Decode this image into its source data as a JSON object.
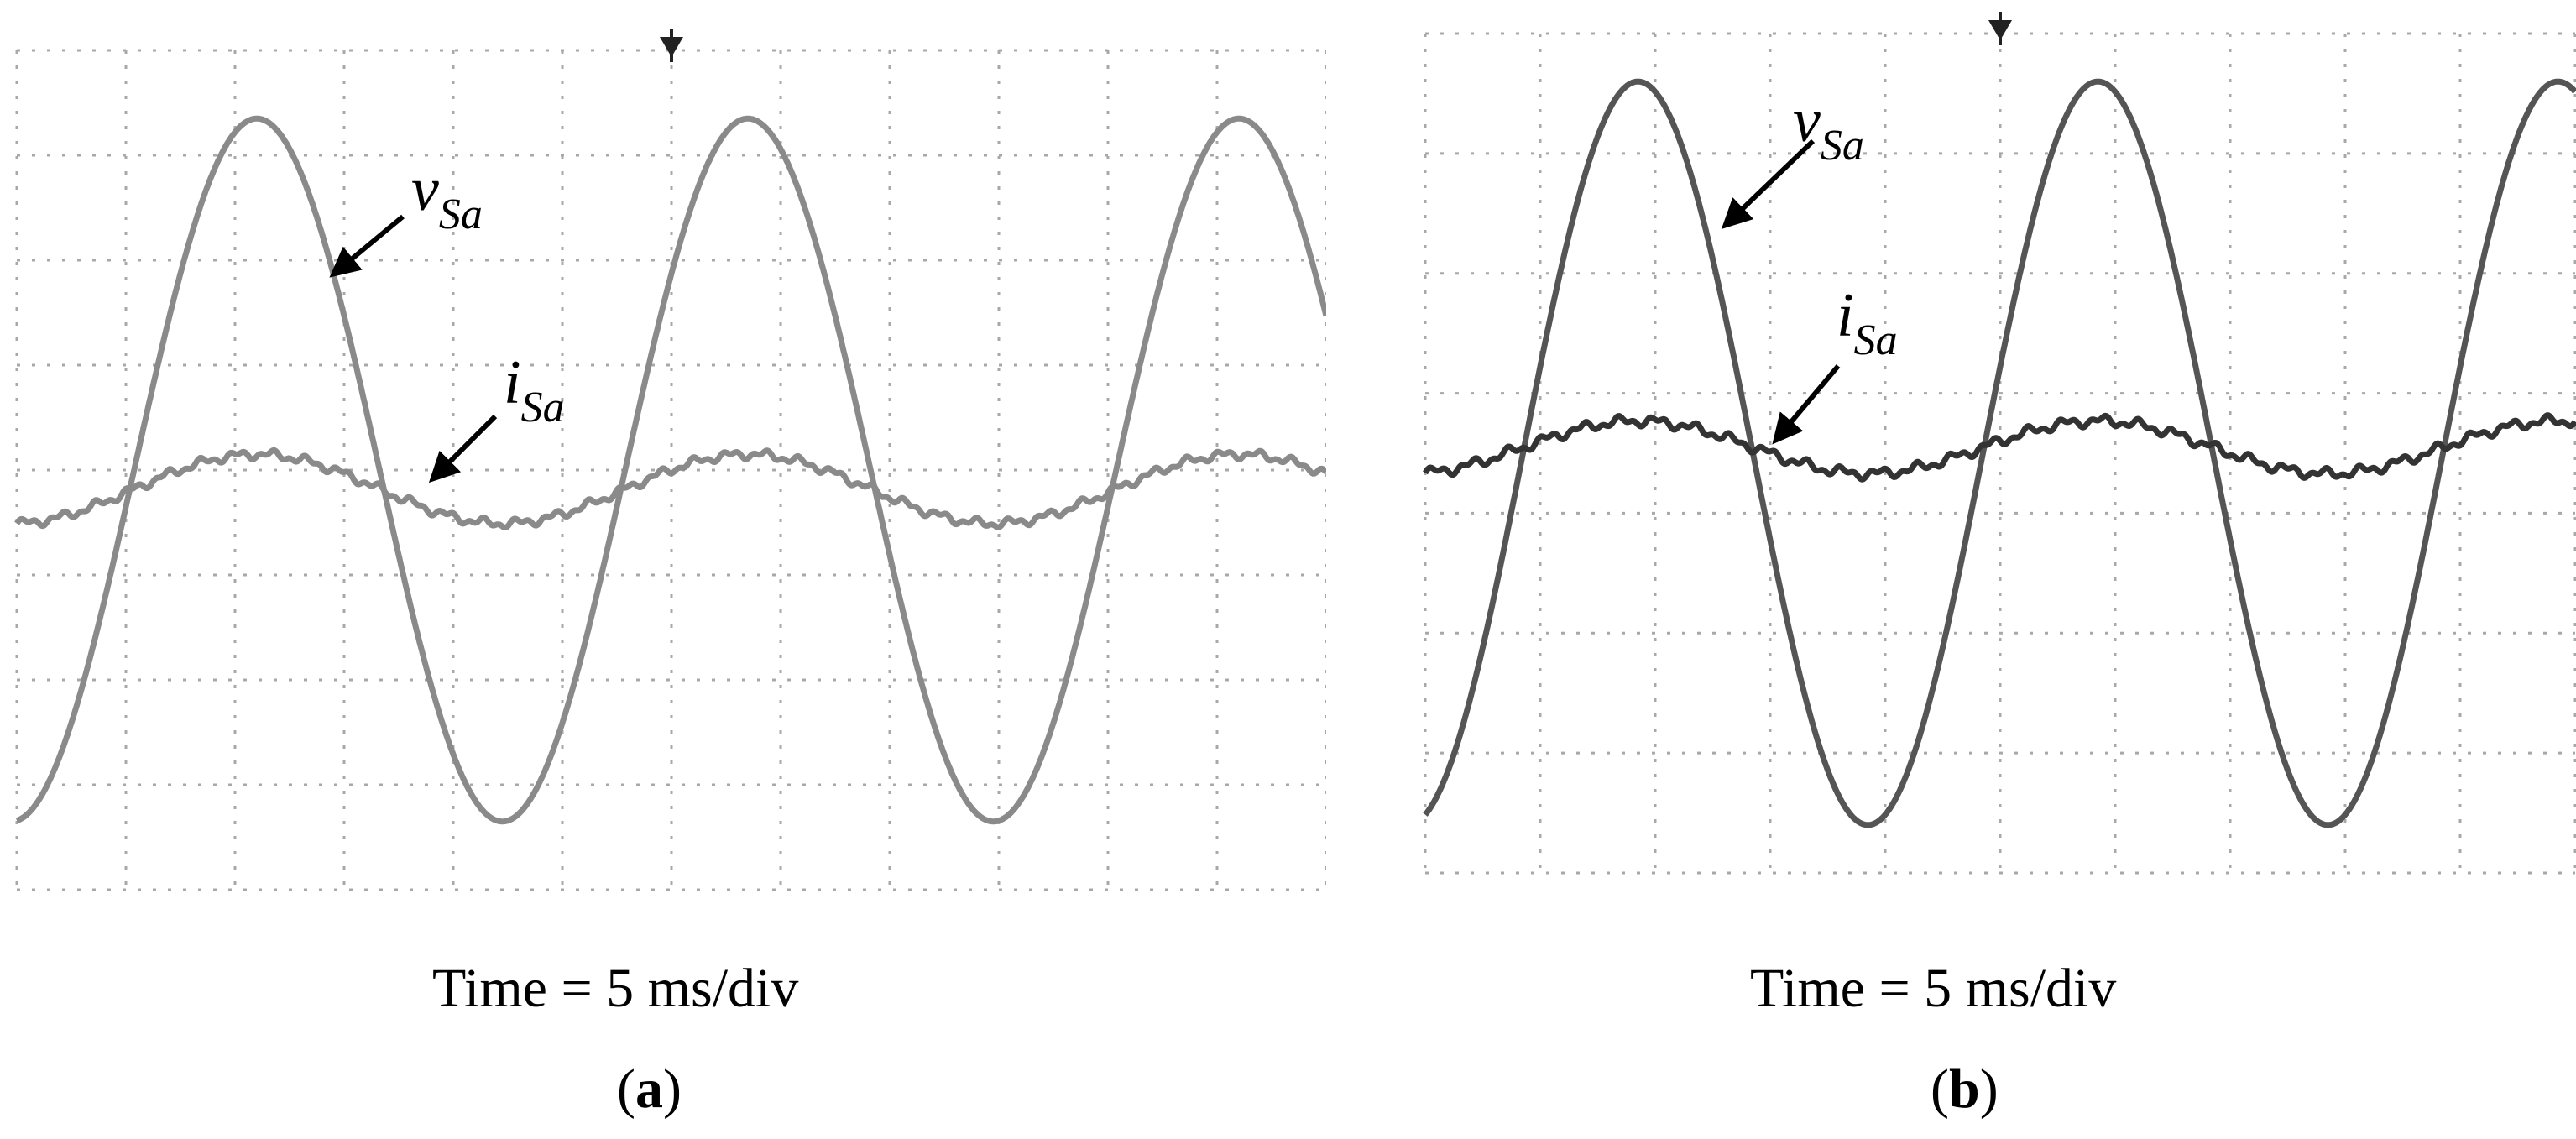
{
  "chart_data": [
    {
      "type": "line",
      "panel": "(a)",
      "xlabel": "Time = 5 ms/div",
      "x_divisions": 12,
      "y_divisions": 8,
      "ylim": [
        -4,
        4
      ],
      "grid": true,
      "series": [
        {
          "name": "vSa",
          "label_main": "v",
          "label_sub": "Sa",
          "kind": "sine",
          "amplitude_div": 3.35,
          "period_div": 4.5,
          "phase_peak_div": 2.2,
          "offset_div": 0.0,
          "color": "#8a8a8a"
        },
        {
          "name": "iSa",
          "label_main": "i",
          "label_sub": "Sa",
          "kind": "sine",
          "amplitude_div": 0.33,
          "period_div": 4.5,
          "phase_peak_div": 2.2,
          "offset_div": -0.18,
          "color": "#8a8a8a"
        }
      ]
    },
    {
      "type": "line",
      "panel": "(b)",
      "xlabel": "Time = 5 ms/div",
      "x_divisions": 10,
      "y_divisions": 7,
      "ylim": [
        -3.5,
        3.5
      ],
      "grid": true,
      "series": [
        {
          "name": "vSa",
          "label_main": "v",
          "label_sub": "Sa",
          "kind": "sine",
          "amplitude_div": 3.1,
          "period_div": 4.0,
          "phase_peak_div": 1.85,
          "offset_div": 0.0,
          "color": "#555555"
        },
        {
          "name": "iSa",
          "label_main": "i",
          "label_sub": "Sa",
          "kind": "sine",
          "amplitude_div": 0.22,
          "period_div": 4.0,
          "phase_peak_div": 1.85,
          "offset_div": 0.05,
          "color": "#333333"
        }
      ]
    }
  ],
  "panels": {
    "a": {
      "time_label": "Time = 5 ms/div",
      "sub_label_open": "(",
      "sub_label_letter": "a",
      "sub_label_close": ")"
    },
    "b": {
      "time_label": "Time = 5 ms/div",
      "sub_label_open": "(",
      "sub_label_letter": "b",
      "sub_label_close": ")"
    }
  }
}
